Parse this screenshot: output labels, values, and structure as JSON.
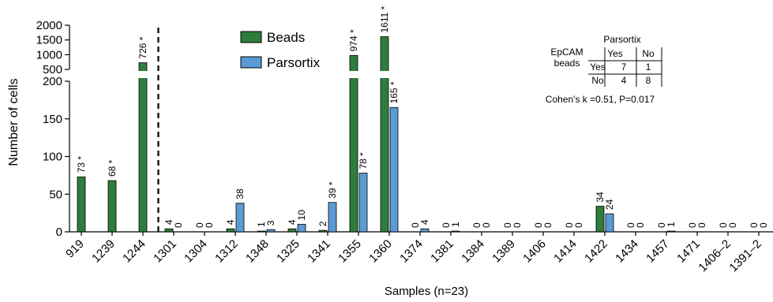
{
  "chart_data": {
    "type": "bar",
    "xlabel": "Samples (n=23)",
    "ylabel": "Number of cells",
    "y_axis_lower": {
      "range": [
        0,
        200
      ],
      "ticks": [
        0,
        50,
        100,
        150,
        200
      ]
    },
    "y_axis_upper": {
      "range": [
        500,
        2000
      ],
      "ticks": [
        500,
        1000,
        1500,
        2000
      ]
    },
    "categories": [
      "919",
      "1239",
      "1244",
      "1301",
      "1304",
      "1312",
      "1348",
      "1325",
      "1341",
      "1355",
      "1360",
      "1374",
      "1381",
      "1384",
      "1389",
      "1406",
      "1414",
      "1422",
      "1434",
      "1457",
      "1471",
      "1406–2",
      "1391–2"
    ],
    "series": [
      {
        "name": "Beads",
        "color": "#2e7d3c",
        "values": [
          73,
          68,
          726,
          4,
          0,
          4,
          1,
          4,
          2,
          974,
          1611,
          0,
          0,
          0,
          0,
          0,
          0,
          34,
          0,
          0,
          0,
          0,
          0
        ],
        "labels": [
          "73 *",
          "68 *",
          "726 *",
          "4",
          "0",
          "4",
          "1",
          "4",
          "2",
          "974 *",
          "1611 *",
          "0",
          "0",
          "0",
          "0",
          "0",
          "0",
          "34",
          "0",
          "0",
          "0",
          "0",
          "0"
        ]
      },
      {
        "name": "Parsortix",
        "color": "#5b9bd5",
        "values": [
          null,
          null,
          null,
          0,
          0,
          38,
          3,
          10,
          39,
          78,
          165,
          4,
          1,
          0,
          0,
          0,
          0,
          24,
          0,
          1,
          0,
          0,
          0
        ],
        "labels": [
          "",
          "",
          "",
          "0",
          "0",
          "38",
          "3",
          "10",
          "39 *",
          "78 *",
          "165 *",
          "4",
          "1",
          "0",
          "0",
          "0",
          "0",
          "24",
          "0",
          "1",
          "0",
          "0",
          "0"
        ]
      }
    ],
    "legend_position": "top-center",
    "grid": false,
    "annotations": {
      "contingency_table": {
        "col_header": "Parsortix",
        "row_header_line1": "EpCAM",
        "row_header_line2": "beads",
        "col_labels": [
          "Yes",
          "No"
        ],
        "row_labels": [
          "Yes",
          "No"
        ],
        "cells": [
          [
            "7",
            "1"
          ],
          [
            "4",
            "8"
          ]
        ]
      },
      "statistic": "Cohen's k =0.51, P=0.017"
    }
  }
}
